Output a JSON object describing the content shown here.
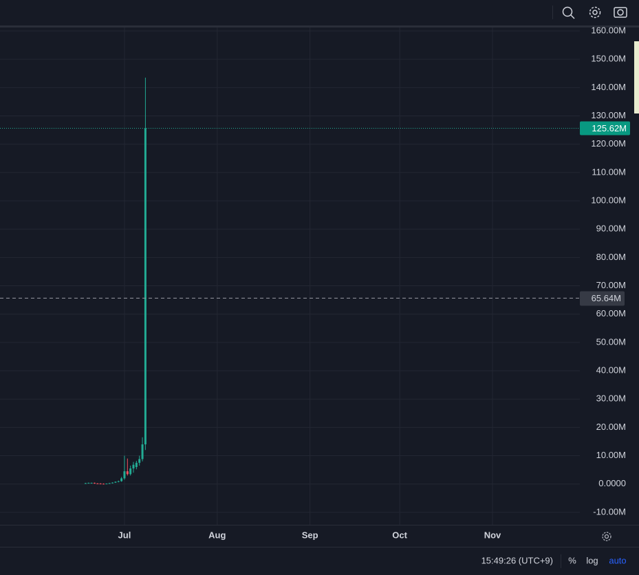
{
  "chart_data": {
    "type": "candlestick",
    "x": [
      169,
      170,
      171,
      172,
      173,
      174,
      175,
      176,
      177,
      178,
      179,
      180,
      181,
      182,
      183,
      184,
      185,
      186,
      187,
      188,
      189
    ],
    "open": [
      200000,
      300000,
      400000,
      400000,
      200000,
      150000,
      100000,
      50000,
      150000,
      300000,
      500000,
      800000,
      1000000,
      2000000,
      4500000,
      3500000,
      5500000,
      6000000,
      7500000,
      8800000,
      14000000
    ],
    "high": [
      400000,
      500000,
      500000,
      500000,
      300000,
      300000,
      200000,
      200000,
      400000,
      600000,
      900000,
      1200000,
      2500000,
      10000000,
      9000000,
      6500000,
      7800000,
      8200000,
      10000000,
      16500000,
      143500000
    ],
    "low": [
      100000,
      200000,
      300000,
      100000,
      100000,
      50000,
      0,
      0,
      100000,
      200000,
      400000,
      600000,
      800000,
      1500000,
      3000000,
      3000000,
      4000000,
      5200000,
      6500000,
      8000000,
      12000000
    ],
    "close": [
      300000,
      400000,
      400000,
      200000,
      150000,
      100000,
      50000,
      150000,
      300000,
      500000,
      800000,
      1000000,
      2000000,
      4500000,
      3500000,
      5500000,
      6800000,
      7500000,
      8800000,
      14000000,
      125620000
    ],
    "up_color": "#22ab94",
    "down_color": "#f7525f",
    "xlim": [
      140.4,
      334.2
    ],
    "xticks": [
      {
        "value": 182,
        "label": "Jul"
      },
      {
        "value": 213,
        "label": "Aug"
      },
      {
        "value": 244,
        "label": "Sep"
      },
      {
        "value": 274,
        "label": "Oct"
      },
      {
        "value": 305,
        "label": "Nov"
      }
    ],
    "ylim": [
      -14400000,
      161700000
    ],
    "yticks": [
      {
        "value": -10000000,
        "label": "-10.00M"
      },
      {
        "value": 0,
        "label": "0.0000"
      },
      {
        "value": 10000000,
        "label": "10.00M"
      },
      {
        "value": 20000000,
        "label": "20.00M"
      },
      {
        "value": 30000000,
        "label": "30.00M"
      },
      {
        "value": 40000000,
        "label": "40.00M"
      },
      {
        "value": 50000000,
        "label": "50.00M"
      },
      {
        "value": 60000000,
        "label": "60.00M"
      },
      {
        "value": 70000000,
        "label": "70.00M"
      },
      {
        "value": 80000000,
        "label": "80.00M"
      },
      {
        "value": 90000000,
        "label": "90.00M"
      },
      {
        "value": 100000000,
        "label": "100.00M"
      },
      {
        "value": 110000000,
        "label": "110.00M"
      },
      {
        "value": 120000000,
        "label": "120.00M"
      },
      {
        "value": 130000000,
        "label": "130.00M"
      },
      {
        "value": 140000000,
        "label": "140.00M"
      },
      {
        "value": 150000000,
        "label": "150.00M"
      },
      {
        "value": 160000000,
        "label": "160.00M"
      }
    ],
    "grid": true,
    "log_scale": false,
    "last_price": {
      "value": 125620000,
      "label": "125.62M"
    },
    "crosshair_price": {
      "value": 65640000,
      "label": "65.64M"
    }
  },
  "status_bar": {
    "time": "15:49:26 (UTC+9)",
    "percent": "%",
    "log": "log",
    "auto": "auto"
  }
}
